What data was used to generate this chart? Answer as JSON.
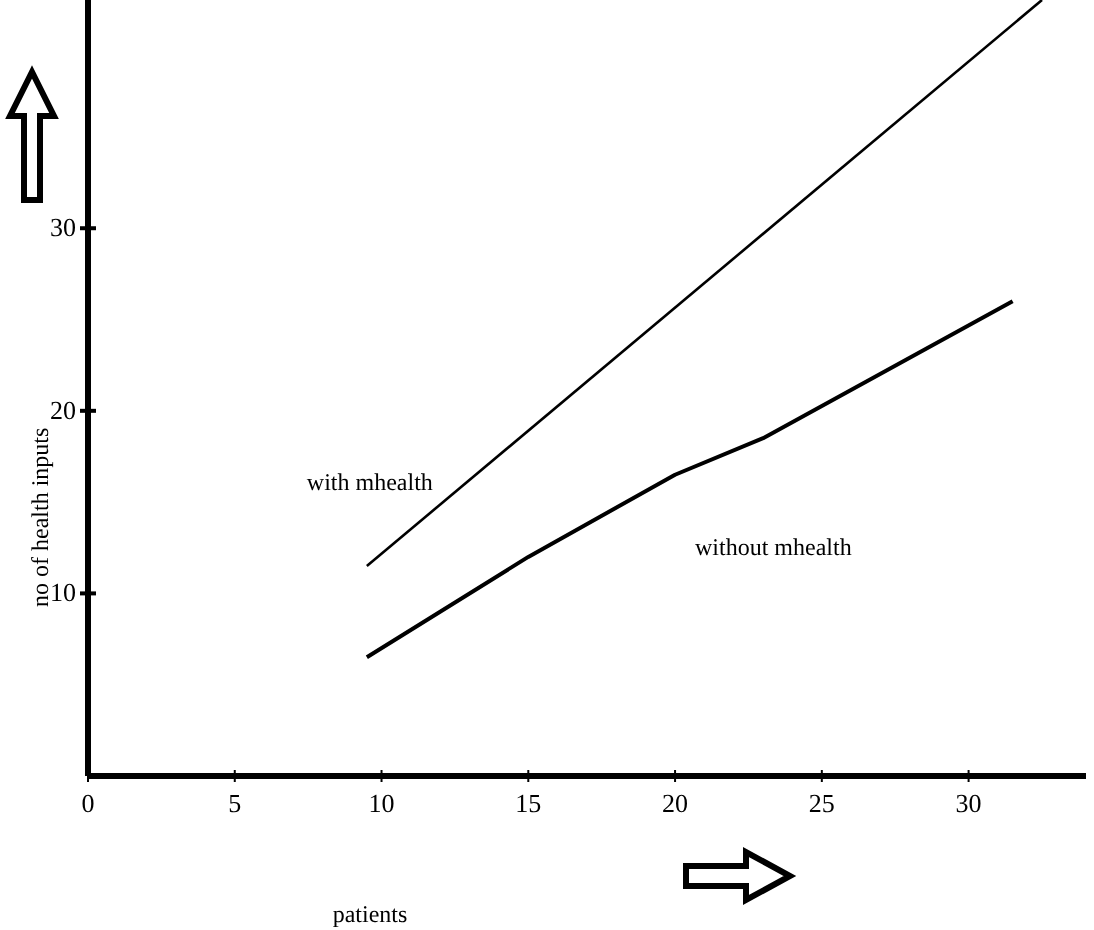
{
  "chart_data": {
    "type": "line",
    "xlabel": "patients",
    "ylabel": "no of health inputs",
    "xlim": [
      0,
      34
    ],
    "ylim": [
      0,
      42.5
    ],
    "xticks": [
      0,
      5,
      10,
      15,
      20,
      25,
      30
    ],
    "yticks": [
      10,
      20,
      30
    ],
    "series": [
      {
        "name": "with mhealth",
        "color": "#000000",
        "x": [
          9.5,
          32.5
        ],
        "values": [
          11.5,
          42.5
        ]
      },
      {
        "name": "without mhealth",
        "color": "#000000",
        "x": [
          9.5,
          15,
          20,
          23,
          31.5
        ],
        "values": [
          6.5,
          12,
          16.5,
          18.5,
          26
        ]
      }
    ],
    "grid": false,
    "marker": "none",
    "line_style": "solid"
  }
}
